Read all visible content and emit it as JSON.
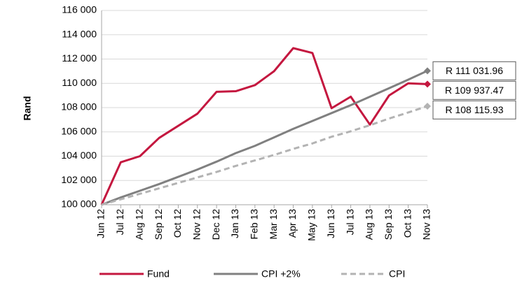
{
  "chart_data": {
    "type": "line",
    "y_label": "Rand",
    "categories": [
      "Jun 12",
      "Jul 12",
      "Aug 12",
      "Sep 12",
      "Oct 12",
      "Nov 12",
      "Dec 12",
      "Jan 13",
      "Feb 13",
      "Mar 13",
      "Apr 13",
      "May 13",
      "Jun 13",
      "Jul 13",
      "Aug 13",
      "Sep 13",
      "Oct 13",
      "Nov 13"
    ],
    "ylim": [
      100000,
      116000
    ],
    "yticks": [
      {
        "value": 100000,
        "label": "100 000"
      },
      {
        "value": 102000,
        "label": "102 000"
      },
      {
        "value": 104000,
        "label": "104 000"
      },
      {
        "value": 106000,
        "label": "106 000"
      },
      {
        "value": 108000,
        "label": "108 000"
      },
      {
        "value": 110000,
        "label": "110 000"
      },
      {
        "value": 112000,
        "label": "112 000"
      },
      {
        "value": 114000,
        "label": "114 000"
      },
      {
        "value": 116000,
        "label": "116 000"
      }
    ],
    "grid": true,
    "legend": "bottom",
    "series": [
      {
        "name": "Fund",
        "color": "#c4173f",
        "dashed": false,
        "values": [
          100000,
          103500,
          104000,
          105500,
          106500,
          107500,
          109300,
          109350,
          109850,
          111000,
          112900,
          112500,
          107950,
          108900,
          106600,
          109000,
          110000,
          109937.47
        ],
        "value_labels": [
          null,
          null,
          null,
          null,
          null,
          null,
          null,
          null,
          null,
          null,
          null,
          null,
          null,
          null,
          null,
          null,
          null,
          "R 109 937.47"
        ]
      },
      {
        "name": "CPI +2%",
        "color": "#808080",
        "dashed": false,
        "values": [
          100000,
          100600,
          101150,
          101700,
          102300,
          102900,
          103550,
          104250,
          104850,
          105550,
          106250,
          106900,
          107550,
          108200,
          108900,
          109600,
          110300,
          111031.96
        ],
        "value_labels": [
          null,
          null,
          null,
          null,
          null,
          null,
          null,
          null,
          null,
          null,
          null,
          null,
          null,
          null,
          null,
          null,
          null,
          "R 111 031.96"
        ]
      },
      {
        "name": "CPI",
        "color": "#b3b3b3",
        "dashed": true,
        "values": [
          100000,
          100450,
          100900,
          101350,
          101800,
          102250,
          102700,
          103200,
          103650,
          104100,
          104600,
          105050,
          105600,
          106050,
          106550,
          107100,
          107600,
          108115.93
        ],
        "value_labels": [
          null,
          null,
          null,
          null,
          null,
          null,
          null,
          null,
          null,
          null,
          null,
          null,
          null,
          null,
          null,
          null,
          null,
          "R 108 115.93"
        ]
      }
    ]
  }
}
